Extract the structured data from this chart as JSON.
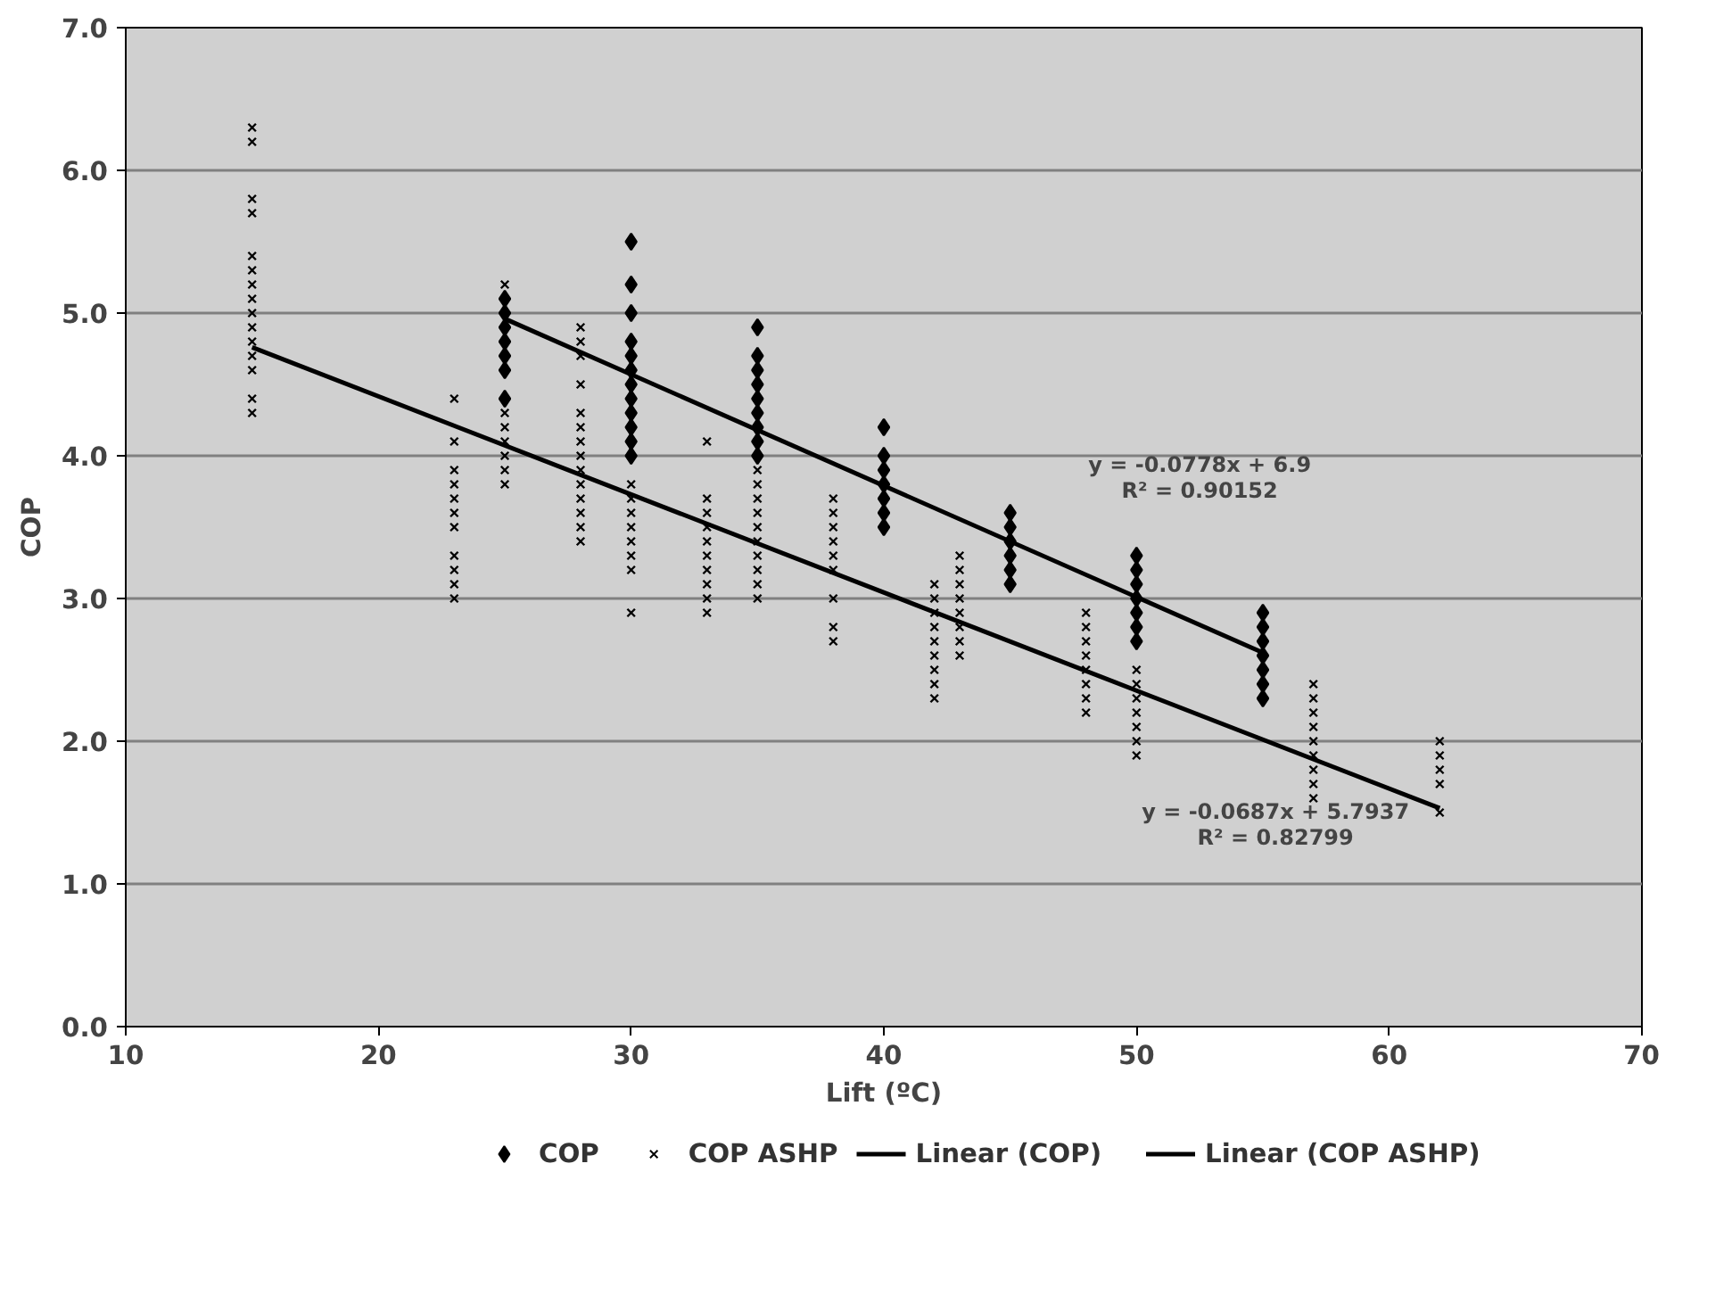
{
  "chart_data": {
    "type": "scatter",
    "xlabel": "Lift (ºC)",
    "ylabel": "COP",
    "xlim": [
      10,
      70
    ],
    "ylim": [
      0,
      7
    ],
    "xticks": [
      10,
      20,
      30,
      40,
      50,
      60,
      70
    ],
    "yticks": [
      {
        "value": 0,
        "label": "0.0"
      },
      {
        "value": 1,
        "label": "1.0"
      },
      {
        "value": 2,
        "label": "2.0"
      },
      {
        "value": 3,
        "label": "3.0"
      },
      {
        "value": 4,
        "label": "4.0"
      },
      {
        "value": 5,
        "label": "5.0"
      },
      {
        "value": 6,
        "label": "6.0"
      },
      {
        "value": 7,
        "label": "7.0"
      }
    ],
    "grid": "y",
    "legend": "bottom",
    "series": [
      {
        "name": "COP",
        "marker": "diamond",
        "color": "#000000",
        "x": [
          25,
          25,
          25,
          25,
          25,
          25,
          25,
          30,
          30,
          30,
          30,
          30,
          30,
          30,
          30,
          30,
          30,
          30,
          30,
          35,
          35,
          35,
          35,
          35,
          35,
          35,
          35,
          35,
          40,
          40,
          40,
          40,
          40,
          40,
          40,
          45,
          45,
          45,
          45,
          45,
          45,
          50,
          50,
          50,
          50,
          50,
          50,
          50,
          55,
          55,
          55,
          55,
          55,
          55,
          55
        ],
        "values": [
          5.1,
          5.0,
          4.9,
          4.8,
          4.7,
          4.6,
          4.4,
          5.5,
          5.2,
          5.0,
          4.8,
          4.7,
          4.6,
          4.5,
          4.4,
          4.3,
          4.2,
          4.1,
          4.0,
          4.9,
          4.7,
          4.6,
          4.5,
          4.4,
          4.3,
          4.2,
          4.1,
          4.0,
          4.2,
          4.0,
          3.9,
          3.8,
          3.7,
          3.6,
          3.5,
          3.6,
          3.5,
          3.4,
          3.3,
          3.2,
          3.1,
          3.3,
          3.2,
          3.1,
          3.0,
          2.9,
          2.8,
          2.7,
          2.9,
          2.8,
          2.7,
          2.6,
          2.5,
          2.4,
          2.3
        ]
      },
      {
        "name": "COP ASHP",
        "marker": "cross",
        "color": "#000000",
        "x": [
          15,
          15,
          15,
          15,
          15,
          15,
          15,
          15,
          15,
          15,
          15,
          15,
          15,
          15,
          15,
          23,
          23,
          23,
          23,
          23,
          23,
          23,
          23,
          23,
          23,
          23,
          25,
          25,
          25,
          25,
          25,
          25,
          25,
          28,
          28,
          28,
          28,
          28,
          28,
          28,
          28,
          28,
          28,
          28,
          28,
          28,
          28,
          30,
          30,
          30,
          30,
          30,
          30,
          30,
          30,
          33,
          33,
          33,
          33,
          33,
          33,
          33,
          33,
          33,
          33,
          35,
          35,
          35,
          35,
          35,
          35,
          35,
          35,
          35,
          35,
          38,
          38,
          38,
          38,
          38,
          38,
          38,
          38,
          38,
          42,
          42,
          42,
          42,
          42,
          42,
          42,
          42,
          42,
          43,
          43,
          43,
          43,
          43,
          43,
          43,
          43,
          48,
          48,
          48,
          48,
          48,
          48,
          48,
          48,
          50,
          50,
          50,
          50,
          50,
          50,
          50,
          57,
          57,
          57,
          57,
          57,
          57,
          57,
          57,
          57,
          62,
          62,
          62,
          62,
          62
        ],
        "values": [
          6.3,
          6.2,
          5.8,
          5.7,
          5.4,
          5.3,
          5.2,
          5.1,
          5.0,
          4.9,
          4.8,
          4.7,
          4.6,
          4.4,
          4.3,
          4.4,
          4.1,
          3.9,
          3.8,
          3.7,
          3.6,
          3.5,
          3.3,
          3.2,
          3.1,
          3.0,
          5.2,
          4.3,
          4.2,
          4.1,
          4.0,
          3.9,
          3.8,
          4.9,
          4.8,
          4.7,
          4.5,
          4.3,
          4.2,
          4.1,
          4.0,
          3.9,
          3.8,
          3.7,
          3.6,
          3.5,
          3.4,
          3.8,
          3.7,
          3.6,
          3.5,
          3.4,
          3.3,
          3.2,
          2.9,
          4.1,
          3.7,
          3.6,
          3.5,
          3.4,
          3.3,
          3.2,
          3.1,
          3.0,
          2.9,
          3.9,
          3.8,
          3.7,
          3.6,
          3.5,
          3.4,
          3.3,
          3.2,
          3.1,
          3.0,
          3.7,
          3.6,
          3.5,
          3.4,
          3.3,
          3.2,
          3.0,
          2.8,
          2.7,
          3.1,
          3.0,
          2.9,
          2.8,
          2.7,
          2.6,
          2.5,
          2.4,
          2.3,
          3.3,
          3.2,
          3.1,
          3.0,
          2.9,
          2.8,
          2.7,
          2.6,
          2.9,
          2.8,
          2.7,
          2.6,
          2.5,
          2.4,
          2.3,
          2.2,
          2.5,
          2.4,
          2.3,
          2.2,
          2.1,
          2.0,
          1.9,
          2.4,
          2.3,
          2.2,
          2.1,
          2.0,
          1.9,
          1.8,
          1.7,
          1.6,
          2.0,
          1.9,
          1.8,
          1.7,
          1.5
        ]
      },
      {
        "name": "Linear (COP)",
        "type": "line",
        "marker": "none",
        "color": "#000000",
        "x": [
          25,
          55
        ],
        "values": [
          4.96,
          2.62
        ]
      },
      {
        "name": "Linear (COP ASHP)",
        "type": "line",
        "marker": "none",
        "color": "#000000",
        "x": [
          15,
          62
        ],
        "values": [
          4.76,
          1.53
        ]
      }
    ],
    "annotations": [
      "y = -0.0778x + 6.9",
      "R² = 0.90152",
      "y = -0.0687x + 5.7937",
      "R² = 0.82799"
    ]
  }
}
